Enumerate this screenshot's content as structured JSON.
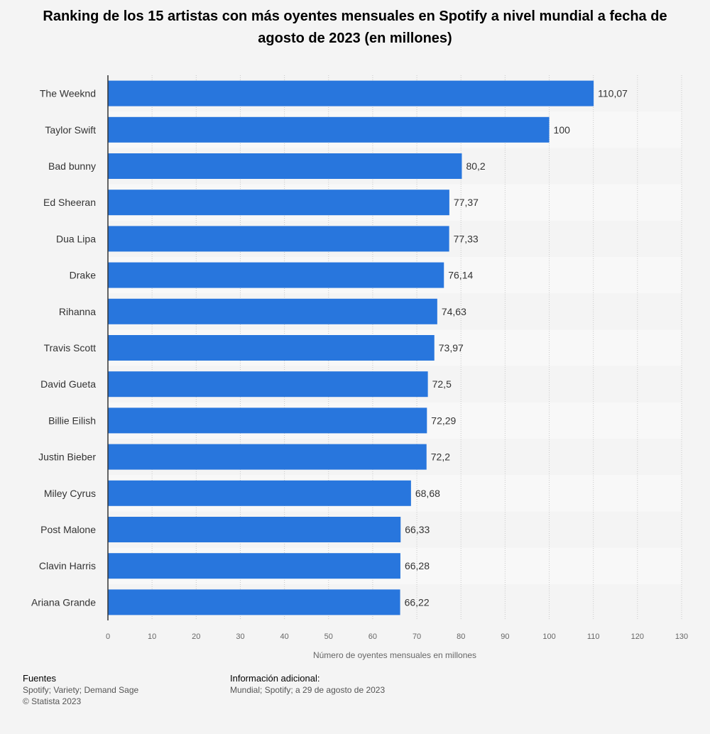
{
  "chart_data": {
    "type": "bar",
    "orientation": "horizontal",
    "title": "Ranking de los 15 artistas con más oyentes mensuales en Spotify a nivel mundial a fecha de agosto de 2023 (en millones)",
    "xlabel": "Número de oyentes mensuales en millones",
    "categories": [
      "The Weeknd",
      "Taylor Swift",
      "Bad bunny",
      "Ed Sheeran",
      "Dua Lipa",
      "Drake",
      "Rihanna",
      "Travis Scott",
      "David Gueta",
      "Billie Eilish",
      "Justin Bieber",
      "Miley Cyrus",
      "Post Malone",
      "Clavin Harris",
      "Ariana Grande"
    ],
    "values": [
      110.07,
      100,
      80.2,
      77.37,
      77.33,
      76.14,
      74.63,
      73.97,
      72.5,
      72.29,
      72.2,
      68.68,
      66.33,
      66.28,
      66.22
    ],
    "value_labels": [
      "110,07",
      "100",
      "80,2",
      "77,37",
      "77,33",
      "76,14",
      "74,63",
      "73,97",
      "72,5",
      "72,29",
      "72,2",
      "68,68",
      "66,33",
      "66,28",
      "66,22"
    ],
    "xlim": [
      0,
      130
    ],
    "xticks": [
      0,
      10,
      20,
      30,
      40,
      50,
      60,
      70,
      80,
      90,
      100,
      110,
      120,
      130
    ],
    "grid": true,
    "bar_color": "#2876dd",
    "stripe_color": "#f8f8f8"
  },
  "footer": {
    "sources_heading": "Fuentes",
    "sources_text": "Spotify; Variety; Demand Sage",
    "copyright": "© Statista 2023",
    "info_heading": "Información adicional:",
    "info_text": "Mundial; Spotify; a 29 de agosto de 2023"
  }
}
